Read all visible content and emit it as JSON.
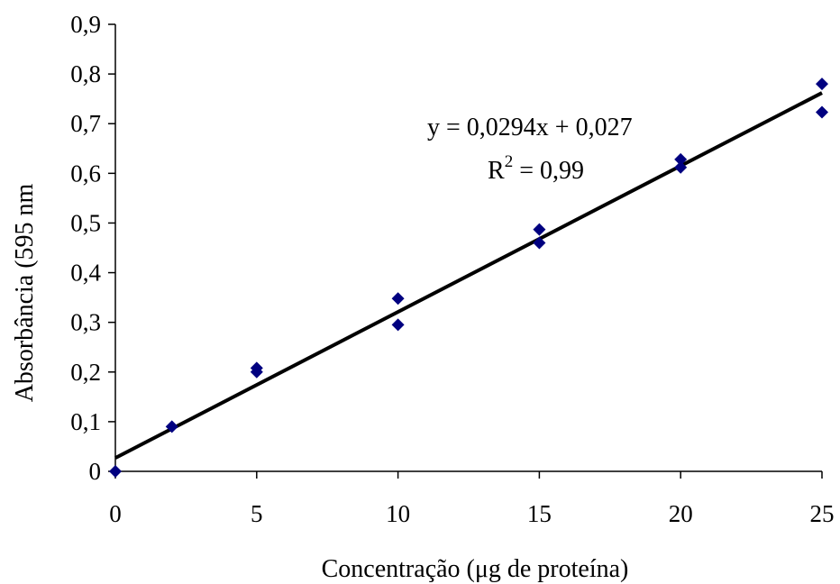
{
  "chart_data": {
    "type": "scatter",
    "title": "",
    "xlabel": "Concentração (μg de proteína)",
    "ylabel": "Absorbância (595 nm",
    "xlim": [
      0,
      25
    ],
    "ylim": [
      0,
      0.9
    ],
    "x_ticks": [
      "0",
      "5",
      "10",
      "15",
      "20",
      "25"
    ],
    "y_ticks": [
      "0",
      "0,1",
      "0,2",
      "0,3",
      "0,4",
      "0,5",
      "0,6",
      "0,7",
      "0,8",
      "0,9"
    ],
    "grid": false,
    "legend": "none",
    "marker_color": "#000080",
    "line_color": "#000000",
    "series": [
      {
        "type": "scatter",
        "marker": "diamond",
        "points": [
          {
            "x": 0,
            "y": 0.0
          },
          {
            "x": 2,
            "y": 0.09
          },
          {
            "x": 5,
            "y": 0.2
          },
          {
            "x": 5,
            "y": 0.208
          },
          {
            "x": 10,
            "y": 0.348
          },
          {
            "x": 10,
            "y": 0.295
          },
          {
            "x": 15,
            "y": 0.487
          },
          {
            "x": 15,
            "y": 0.46
          },
          {
            "x": 20,
            "y": 0.628
          },
          {
            "x": 20,
            "y": 0.612
          },
          {
            "x": 25,
            "y": 0.78
          },
          {
            "x": 25,
            "y": 0.723
          }
        ]
      },
      {
        "type": "line",
        "kind": "linear-trendline",
        "slope": 0.0294,
        "intercept": 0.027
      }
    ],
    "annotations": {
      "equation": "y = 0,0294x + 0,027",
      "r2_prefix": "R",
      "r2_exponent": "2",
      "r2_value": " = 0,99"
    }
  }
}
